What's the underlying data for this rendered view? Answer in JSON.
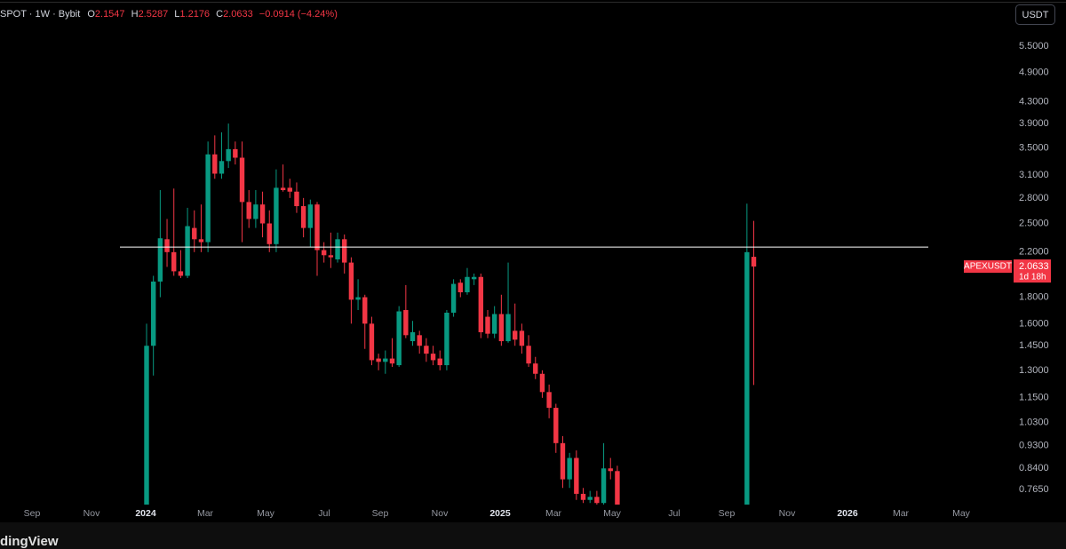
{
  "chart_data": {
    "type": "candlestick",
    "symbol": "SPOT · 1W · Bybit",
    "legend_labels": [
      "O",
      "H",
      "L",
      "C"
    ],
    "change": "−0.0914 (−4.24%)",
    "currency": "USDT",
    "ticker": "APEXUSDT",
    "countdown": "1d 18h",
    "brand": "dingView",
    "log_scale": true,
    "up_color": "#089981",
    "down_color": "#f23645",
    "hline": 2.25,
    "ylim": [
      0.715,
      6.76
    ],
    "yticks": [
      {
        "value": 5.5,
        "label": "5.5000"
      },
      {
        "value": 4.9,
        "label": "4.9000"
      },
      {
        "value": 4.3,
        "label": "4.3000"
      },
      {
        "value": 3.9,
        "label": "3.9000"
      },
      {
        "value": 3.5,
        "label": "3.5000"
      },
      {
        "value": 3.1,
        "label": "3.1000"
      },
      {
        "value": 2.8,
        "label": "2.8000"
      },
      {
        "value": 2.5,
        "label": "2.5000"
      },
      {
        "value": 2.2,
        "label": "2.2000"
      },
      {
        "value": 1.8,
        "label": "1.8000"
      },
      {
        "value": 1.6,
        "label": "1.6000"
      },
      {
        "value": 1.45,
        "label": "1.4500"
      },
      {
        "value": 1.3,
        "label": "1.3000"
      },
      {
        "value": 1.15,
        "label": "1.1500"
      },
      {
        "value": 1.03,
        "label": "1.0300"
      },
      {
        "value": 0.93,
        "label": "0.9300"
      },
      {
        "value": 0.84,
        "label": "0.8400"
      },
      {
        "value": 0.765,
        "label": "0.7650"
      }
    ],
    "x_labels": [
      "Sep",
      "Nov",
      "2024",
      "Mar",
      "May",
      "Jul",
      "Sep",
      "Nov",
      "2025",
      "Mar",
      "May",
      "Jul",
      "Sep",
      "Nov",
      "2026",
      "Mar",
      "May"
    ],
    "open": [
      0.7,
      1.45,
      1.93,
      2.33,
      2.2,
      2.02,
      1.98,
      2.45,
      2.33,
      2.3,
      3.4,
      3.12,
      3.3,
      3.48,
      3.35,
      2.75,
      2.55,
      2.72,
      2.5,
      2.28,
      2.93,
      2.93,
      2.88,
      2.7,
      2.45,
      2.72,
      2.22,
      2.17,
      2.13,
      2.33,
      2.1,
      1.78,
      1.8,
      1.6,
      1.37,
      1.35,
      1.37,
      1.33,
      1.7,
      1.48,
      1.52,
      1.45,
      1.4,
      1.37,
      1.33,
      1.68,
      1.92,
      1.84,
      1.95,
      1.97,
      1.65,
      1.53,
      1.67,
      1.48,
      1.55,
      1.55,
      1.45,
      1.34,
      1.28,
      1.18,
      1.1,
      0.94,
      0.8,
      0.88,
      0.75,
      0.73,
      0.74,
      0.72,
      0.84,
      0.83,
      null,
      null,
      null,
      null,
      null,
      null,
      null,
      null,
      null,
      null,
      null,
      null,
      null,
      null,
      null,
      null,
      null,
      null,
      0.7,
      2.1547
    ],
    "high": [
      1.6,
      1.98,
      2.9,
      2.55,
      2.92,
      2.22,
      2.68,
      2.65,
      2.72,
      3.6,
      3.7,
      3.75,
      3.9,
      3.6,
      3.6,
      2.9,
      2.9,
      2.88,
      2.65,
      3.18,
      3.25,
      3.05,
      3.0,
      2.8,
      2.78,
      2.75,
      2.3,
      2.4,
      2.4,
      2.38,
      2.15,
      1.95,
      1.82,
      1.65,
      1.4,
      1.42,
      1.5,
      1.73,
      1.9,
      1.62,
      1.55,
      1.5,
      1.45,
      1.42,
      1.7,
      1.95,
      1.95,
      2.05,
      2.0,
      2.0,
      1.7,
      1.73,
      1.82,
      2.1,
      1.75,
      1.6,
      1.52,
      1.38,
      1.3,
      1.22,
      1.12,
      0.97,
      0.9,
      0.91,
      0.77,
      0.76,
      0.76,
      0.94,
      0.88,
      0.85,
      null,
      null,
      null,
      null,
      null,
      null,
      null,
      null,
      null,
      null,
      null,
      null,
      null,
      null,
      null,
      null,
      null,
      null,
      2.73,
      2.5287
    ],
    "low": [
      0.7,
      1.27,
      1.8,
      2.06,
      1.98,
      1.96,
      1.96,
      2.2,
      2.2,
      2.2,
      3.05,
      3.05,
      3.2,
      3.25,
      2.3,
      2.45,
      2.45,
      2.35,
      2.2,
      2.2,
      2.88,
      2.8,
      2.62,
      2.35,
      2.25,
      1.98,
      2.1,
      2.05,
      2.1,
      2.0,
      1.6,
      1.7,
      1.43,
      1.33,
      1.3,
      1.28,
      1.32,
      1.32,
      1.5,
      1.45,
      1.4,
      1.35,
      1.33,
      1.3,
      1.3,
      1.65,
      1.8,
      1.82,
      1.9,
      1.5,
      1.5,
      1.5,
      1.45,
      1.47,
      1.45,
      1.4,
      1.32,
      1.25,
      1.15,
      1.05,
      0.9,
      0.77,
      0.77,
      0.73,
      0.72,
      0.72,
      0.715,
      0.715,
      0.8,
      0.7,
      null,
      null,
      null,
      null,
      null,
      null,
      null,
      null,
      null,
      null,
      null,
      null,
      null,
      null,
      null,
      null,
      null,
      null,
      0.7,
      1.2176
    ],
    "close": [
      1.45,
      1.93,
      2.34,
      2.2,
      2.02,
      1.98,
      2.47,
      2.33,
      2.3,
      3.4,
      3.12,
      3.3,
      3.48,
      3.35,
      2.75,
      2.55,
      2.72,
      2.5,
      2.28,
      2.93,
      2.9,
      2.88,
      2.7,
      2.45,
      2.72,
      2.22,
      2.17,
      2.15,
      2.33,
      2.1,
      1.78,
      1.8,
      1.6,
      1.36,
      1.35,
      1.37,
      1.34,
      1.69,
      1.52,
      1.54,
      1.45,
      1.4,
      1.36,
      1.33,
      1.68,
      1.91,
      1.84,
      1.97,
      1.97,
      1.54,
      1.53,
      1.67,
      1.48,
      1.67,
      1.49,
      1.45,
      1.34,
      1.28,
      1.18,
      1.1,
      0.94,
      0.8,
      0.88,
      0.75,
      0.73,
      0.74,
      0.72,
      0.84,
      0.83,
      0.7,
      null,
      null,
      null,
      null,
      null,
      null,
      null,
      null,
      null,
      null,
      null,
      null,
      null,
      null,
      null,
      null,
      null,
      null,
      2.2,
      2.0633
    ]
  }
}
